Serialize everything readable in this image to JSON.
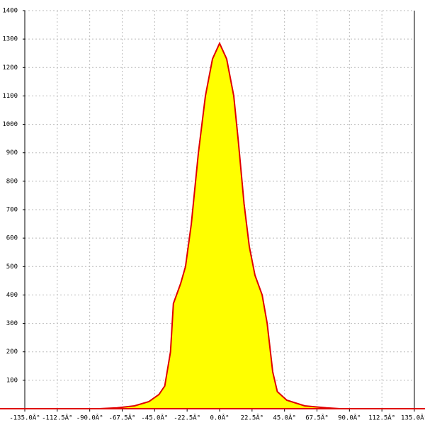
{
  "chart_data": {
    "type": "area",
    "x": [
      -135,
      -83.5,
      -71,
      -59,
      -49,
      -42,
      -38,
      -34,
      -32,
      -27,
      -23.6,
      -19.6,
      -14.7,
      -9.8,
      -4.9,
      0,
      4.9,
      9.8,
      13,
      17,
      20.6,
      24.5,
      29.5,
      33,
      36.8,
      40,
      46.6,
      59,
      74,
      83.5,
      135
    ],
    "series": [
      {
        "color": "#e00000",
        "fill": "#ffff00",
        "values": [
          0,
          0,
          3,
          10,
          25,
          50,
          80,
          200,
          370,
          440,
          500,
          650,
          900,
          1100,
          1230,
          1285,
          1230,
          1100,
          940,
          720,
          570,
          470,
          400,
          300,
          130,
          60,
          30,
          10,
          3,
          0,
          0
        ]
      }
    ],
    "xlim": [
      -135,
      135
    ],
    "ylim": [
      0,
      1400
    ],
    "xticks": [
      {
        "value": -135,
        "label": "-135.0Â°"
      },
      {
        "value": -112.5,
        "label": "-112.5Â°"
      },
      {
        "value": -90,
        "label": "-90.0Â°"
      },
      {
        "value": -67.5,
        "label": "-67.5Â°"
      },
      {
        "value": -45,
        "label": "-45.0Â°"
      },
      {
        "value": -22.5,
        "label": "-22.5Â°"
      },
      {
        "value": 0,
        "label": "0.0Â°"
      },
      {
        "value": 22.5,
        "label": "22.5Â°"
      },
      {
        "value": 45,
        "label": "45.0Â°"
      },
      {
        "value": 67.5,
        "label": "67.5Â°"
      },
      {
        "value": 90,
        "label": "90.0Â°"
      },
      {
        "value": 112.5,
        "label": "112.5Â°"
      },
      {
        "value": 135,
        "label": "135.0Â°"
      }
    ],
    "yticks": [
      100,
      200,
      300,
      400,
      500,
      600,
      700,
      800,
      900,
      1000,
      1100,
      1200,
      1300,
      1400
    ],
    "grid": true
  }
}
